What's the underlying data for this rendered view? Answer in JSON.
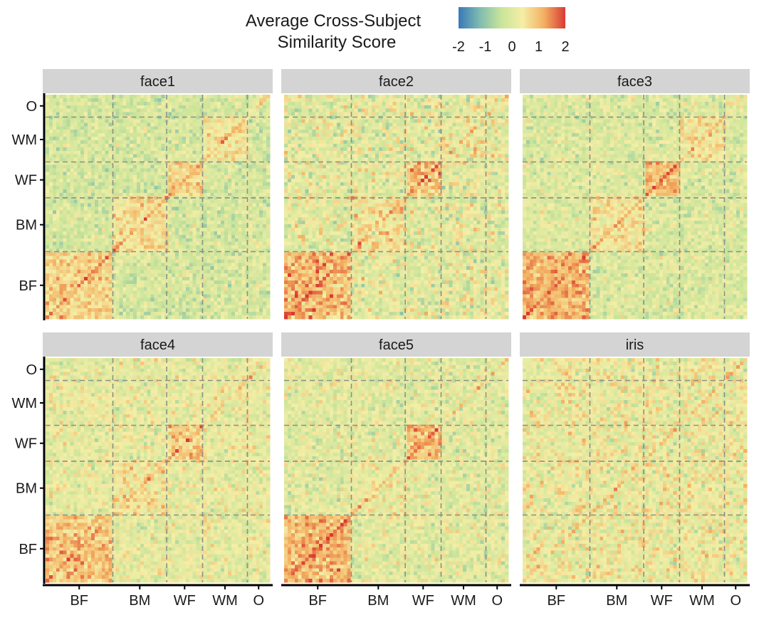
{
  "chart_data": {
    "type": "heatmap",
    "legend": {
      "title_line1": "Average Cross-Subject",
      "title_line2": "Similarity Score",
      "ticks": [
        "-2",
        "-1",
        "0",
        "1",
        "2"
      ],
      "range": [
        -2,
        2
      ],
      "colormap": [
        "#3a78b8",
        "#7fbcb0",
        "#c9e49a",
        "#f5eea6",
        "#f3b062",
        "#d93a33"
      ]
    },
    "groups": [
      "BF",
      "BM",
      "WF",
      "WM",
      "O"
    ],
    "group_fractions": [
      0.3,
      0.24,
      0.16,
      0.2,
      0.1
    ],
    "facet_rows": 2,
    "facet_cols": 3,
    "panels": [
      {
        "label": "face1",
        "within_group_mean": [
          0.8,
          0.6,
          0.7,
          0.5,
          0.1
        ],
        "between_group_mean": -0.15,
        "noise": 0.55
      },
      {
        "label": "face2",
        "within_group_mean": [
          1.1,
          0.5,
          0.9,
          0.3,
          0.2
        ],
        "between_group_mean": 0.1,
        "noise": 0.75
      },
      {
        "label": "face3",
        "within_group_mean": [
          1.1,
          0.5,
          1.0,
          0.5,
          0.1
        ],
        "between_group_mean": -0.05,
        "noise": 0.55
      },
      {
        "label": "face4",
        "within_group_mean": [
          0.9,
          0.5,
          0.8,
          0.2,
          0.2
        ],
        "between_group_mean": 0.15,
        "noise": 0.6
      },
      {
        "label": "face5",
        "within_group_mean": [
          1.1,
          0.3,
          1.0,
          0.1,
          0.1
        ],
        "between_group_mean": 0.05,
        "noise": 0.6
      },
      {
        "label": "iris",
        "within_group_mean": [
          0.25,
          0.25,
          0.25,
          0.25,
          0.25
        ],
        "between_group_mean": 0.25,
        "noise": 0.7
      }
    ],
    "x_tick_labels": [
      "BF",
      "BM",
      "WF",
      "WM",
      "O"
    ],
    "y_tick_labels": [
      "BF",
      "BM",
      "WF",
      "WM",
      "O"
    ],
    "grid": false,
    "legend_position": "top"
  }
}
